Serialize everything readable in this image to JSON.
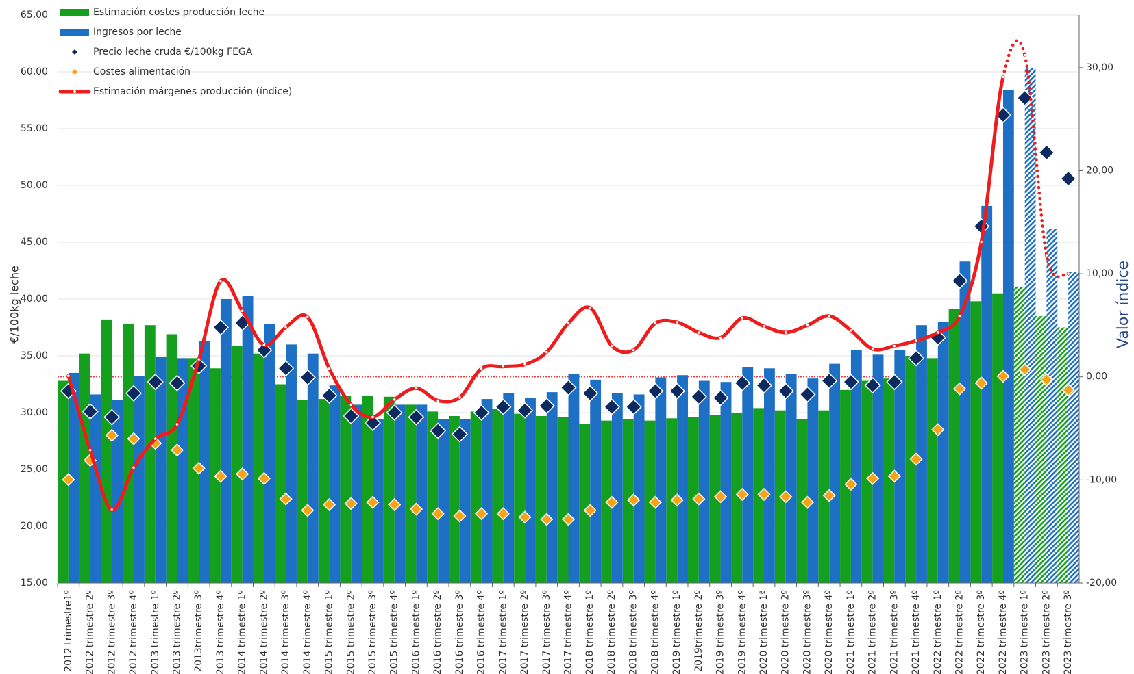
{
  "chart_data": {
    "type": "bar",
    "categories": [
      "2012 trimestre1º",
      "2012 trimestre 2º",
      "2012 trimestre 3º",
      "2012 trimestre 4º",
      "2013 trimestre 1º",
      "2013 trimestre 2º",
      "2013trimestre 3º",
      "2013 trimestre 4º",
      "2014 trimestre 1º",
      "2014 trimestre 2º",
      "2014 trimestre 3º",
      "2014 trimestre 4º",
      "2015 trimestre 1º",
      "2015 trimestre 2º",
      "2015 trimestre 3º",
      "2015 trimestre 4º",
      "2016 trimestre 1º",
      "2016 trimestre 2º",
      "2016 trimestre 3º",
      "2016 trimestre 4º",
      "2017 trimestre 1º",
      "2017 trimestre 2º",
      "2017 trimestre 3º",
      "2017 trimestre 4º",
      "2018 trimestre 1º",
      "2018 trimestre 2º",
      "2018 trimestre 3º",
      "2018 trimestre 4º",
      "2019 trimestre 1º",
      "2019trimestre 2º",
      "2019 trimestre 3º",
      "2019 trimestre 4º",
      "2020 trimestre 1ª",
      "2020 trimestre 2º",
      "2020 trimestre 3º",
      "2020 trimestre 4º",
      "2021 trimestre 1º",
      "2021 trimestre 2º",
      "2021 trimestre 3º",
      "2021 trimestre 4º",
      "2022 trimestre 1º",
      "2022 trimestre 2º",
      "2022 trimestre 3º",
      "2022 trimestre 4º",
      "2023 trimestre 1º",
      "2023 trimestre 2º",
      "2023 trimestre 3º"
    ],
    "series": [
      {
        "name": "Estimación costes producción leche",
        "type": "bar",
        "color": "#14a01e",
        "values": [
          32.8,
          35.2,
          38.2,
          37.8,
          37.7,
          36.9,
          34.8,
          33.9,
          35.9,
          35.2,
          32.5,
          31.1,
          31.2,
          31.5,
          31.5,
          31.4,
          30.7,
          30.1,
          29.7,
          30.1,
          30.3,
          29.9,
          29.7,
          29.6,
          29.0,
          29.3,
          29.4,
          29.3,
          29.5,
          29.6,
          29.8,
          30.0,
          30.4,
          30.2,
          29.4,
          30.2,
          32.0,
          32.8,
          33.0,
          35.0,
          34.8,
          39.1,
          39.8,
          40.5,
          41.1,
          38.5,
          37.5
        ]
      },
      {
        "name": "Ingresos por leche",
        "type": "bar",
        "color": "#1e70c4",
        "values": [
          33.5,
          31.6,
          31.1,
          33.2,
          34.9,
          34.8,
          36.3,
          40.0,
          40.3,
          37.8,
          36.0,
          35.2,
          32.4,
          30.7,
          29.4,
          30.7,
          30.7,
          29.4,
          29.4,
          31.2,
          31.7,
          31.3,
          31.8,
          33.4,
          32.9,
          31.7,
          31.6,
          33.1,
          33.3,
          32.8,
          32.7,
          34.0,
          33.9,
          33.4,
          33.0,
          34.3,
          35.5,
          35.1,
          35.5,
          37.7,
          38.0,
          43.3,
          48.2,
          58.4,
          60.3,
          46.2,
          42.4
        ]
      },
      {
        "name": "Precio leche cruda €/100kg FEGA",
        "type": "scatter",
        "color": "#0d2a60",
        "values": [
          31.9,
          30.1,
          29.6,
          31.7,
          32.7,
          32.6,
          34.1,
          37.5,
          37.9,
          35.5,
          33.9,
          33.1,
          31.5,
          29.7,
          29.1,
          30.0,
          29.6,
          28.4,
          28.1,
          30.0,
          30.5,
          30.2,
          30.6,
          32.2,
          31.7,
          30.5,
          30.5,
          31.9,
          31.9,
          31.4,
          31.3,
          32.6,
          32.4,
          31.9,
          31.6,
          32.8,
          32.7,
          32.4,
          32.7,
          34.8,
          36.6,
          41.6,
          46.4,
          56.2,
          57.7,
          52.9,
          50.6
        ]
      },
      {
        "name": "Costes alimentación",
        "type": "scatter",
        "color": "#f7a21b",
        "values": [
          24.1,
          25.8,
          28.0,
          27.7,
          27.3,
          26.7,
          25.1,
          24.4,
          24.6,
          24.2,
          22.4,
          21.4,
          21.9,
          22.0,
          22.1,
          21.9,
          21.5,
          21.1,
          20.9,
          21.1,
          21.1,
          20.8,
          20.6,
          20.6,
          21.4,
          22.1,
          22.3,
          22.1,
          22.3,
          22.4,
          22.6,
          22.8,
          22.8,
          22.6,
          22.1,
          22.7,
          23.7,
          24.2,
          24.4,
          25.9,
          28.5,
          32.1,
          32.6,
          33.2,
          33.8,
          32.9,
          32.0
        ]
      },
      {
        "name": "Estimación márgenes producción (índice)",
        "type": "line",
        "axis": "y2",
        "color": "#ee1c1c",
        "values": [
          0.1,
          -7.1,
          -12.9,
          -8.8,
          -6.0,
          -4.6,
          1.7,
          9.3,
          6.4,
          3.1,
          4.8,
          5.8,
          0.8,
          -2.7,
          -3.9,
          -2.2,
          -1.1,
          -2.3,
          -2.0,
          0.8,
          1.0,
          1.2,
          2.4,
          5.2,
          6.7,
          3.0,
          2.6,
          5.2,
          5.3,
          4.3,
          3.8,
          5.7,
          4.9,
          4.3,
          5.0,
          5.9,
          4.5,
          2.7,
          3.0,
          3.5,
          4.3,
          5.9,
          13.1,
          29.1,
          31.2,
          11.8,
          10.0
        ]
      }
    ],
    "forecast_from": 44,
    "y_label": "€/100kg leche",
    "y2_label": "Valor índice",
    "ylim": [
      15,
      65
    ],
    "yticks": [
      {
        "value": 15,
        "label": "15,00"
      },
      {
        "value": 20,
        "label": "20,00"
      },
      {
        "value": 25,
        "label": "25,00"
      },
      {
        "value": 30,
        "label": "30,00"
      },
      {
        "value": 35,
        "label": "35,00"
      },
      {
        "value": 40,
        "label": "40,00"
      },
      {
        "value": 45,
        "label": "45,00"
      },
      {
        "value": 50,
        "label": "50,00"
      },
      {
        "value": 55,
        "label": "55,00"
      },
      {
        "value": 60,
        "label": "60,00"
      },
      {
        "value": 65,
        "label": "65,00"
      }
    ],
    "y2lim": [
      -20,
      35.1
    ],
    "y2ticks": [
      {
        "value": -20,
        "label": "-20,00"
      },
      {
        "value": -10,
        "label": "-10,00"
      },
      {
        "value": 0,
        "label": "0,00"
      },
      {
        "value": 10,
        "label": "10,00"
      },
      {
        "value": 20,
        "label": "20,00"
      },
      {
        "value": 30,
        "label": "30,00"
      }
    ],
    "grid": true,
    "legend": "top-left"
  }
}
